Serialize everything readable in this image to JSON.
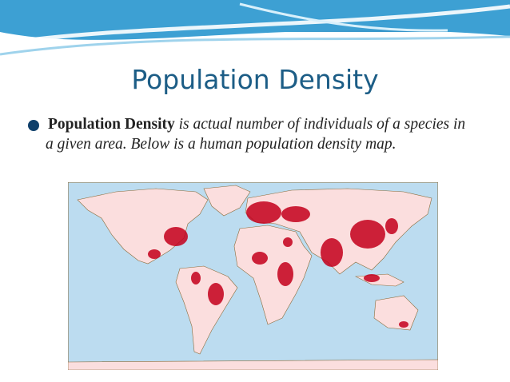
{
  "title": "Population Density",
  "bullet": {
    "term": "Population Density",
    "text": "is actual number of individuals of a species in a given area. Below is a human population density map."
  }
}
